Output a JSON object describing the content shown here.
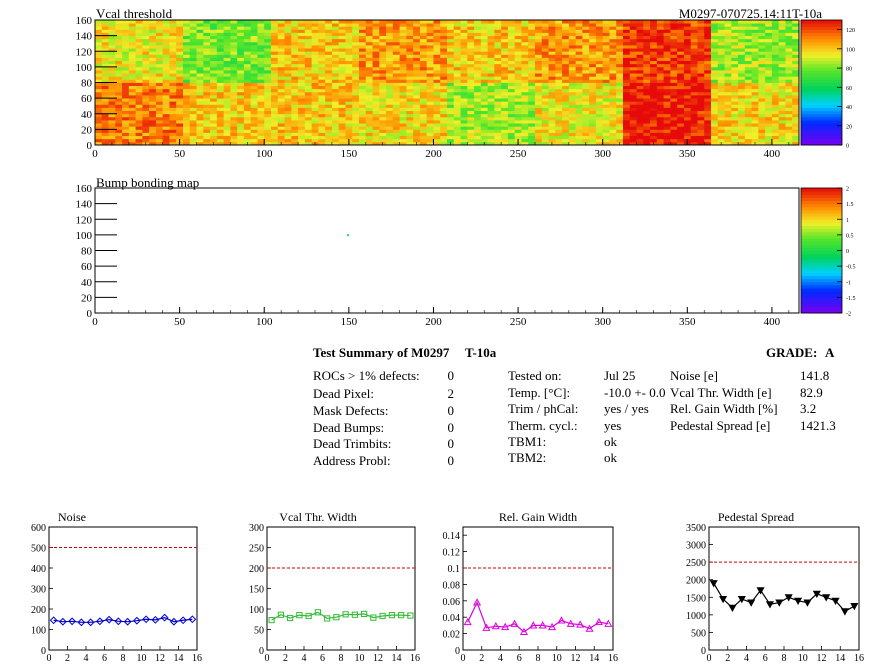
{
  "header": {
    "title": "Vcal threshold",
    "module_id": "M0297-070725.14:11T-10a"
  },
  "bump_map": {
    "title": "Bump bonding map"
  },
  "summary": {
    "title": "Test Summary of M0297",
    "tag": "T-10a",
    "grade_label": "GRADE:",
    "grade": "A",
    "col1": [
      {
        "label": "ROCs > 1% defects:",
        "value": "0"
      },
      {
        "label": "Dead Pixel:",
        "value": "2"
      },
      {
        "label": "Mask Defects:",
        "value": "0"
      },
      {
        "label": "Dead Bumps:",
        "value": "0"
      },
      {
        "label": "Dead Trimbits:",
        "value": "0"
      },
      {
        "label": "Address Probl:",
        "value": "0"
      }
    ],
    "col2": [
      {
        "label": "Tested on:",
        "value": "Jul 25"
      },
      {
        "label": "Temp. [°C]:",
        "value": "-10.0 +- 0.0"
      },
      {
        "label": "Trim / phCal:",
        "value": "yes / yes"
      },
      {
        "label": "Therm. cycl.:",
        "value": "yes"
      },
      {
        "label": "TBM1:",
        "value": "ok"
      },
      {
        "label": "TBM2:",
        "value": "ok"
      }
    ],
    "col3": [
      {
        "label": "Noise [e]",
        "value": "141.8"
      },
      {
        "label": "Vcal Thr. Width [e]",
        "value": "82.9"
      },
      {
        "label": "Rel. Gain Width [%]",
        "value": "3.2"
      },
      {
        "label": "Pedestal Spread [e]",
        "value": "1421.3"
      }
    ]
  },
  "chart_data": [
    {
      "type": "heatmap",
      "title": "Vcal threshold",
      "xlim": [
        0,
        416
      ],
      "ylim": [
        0,
        160
      ],
      "x_ticks": [
        0,
        50,
        100,
        150,
        200,
        250,
        300,
        350,
        400
      ],
      "y_ticks": [
        0,
        20,
        40,
        60,
        80,
        100,
        120,
        140,
        160
      ],
      "colorbar": {
        "min": 0,
        "max": 130,
        "ticks": [
          0,
          20,
          40,
          60,
          80,
          100,
          120
        ]
      },
      "roc_grid": {
        "cols": 8,
        "rows": 2,
        "roc_width": 52,
        "roc_height": 80
      },
      "roc_levels_top": [
        95,
        80,
        100,
        108,
        100,
        108,
        123,
        85
      ],
      "roc_levels_bottom": [
        112,
        100,
        100,
        98,
        85,
        95,
        128,
        98
      ]
    },
    {
      "type": "heatmap",
      "title": "Bump bonding map",
      "xlim": [
        0,
        416
      ],
      "ylim": [
        0,
        160
      ],
      "x_ticks": [
        0,
        50,
        100,
        150,
        200,
        250,
        300,
        350,
        400
      ],
      "y_ticks": [
        0,
        20,
        40,
        60,
        80,
        100,
        120,
        140,
        160
      ],
      "colorbar": {
        "min": -2,
        "max": 2,
        "ticks": [
          -2,
          -1.5,
          -1,
          -0.5,
          0,
          0.5,
          1,
          1.5,
          2
        ]
      },
      "points": [
        {
          "x": 149,
          "y": 99,
          "value": 0
        }
      ]
    },
    {
      "type": "line",
      "title": "Noise",
      "xlim": [
        0,
        16
      ],
      "ylim": [
        0,
        600
      ],
      "x_ticks": [
        0,
        2,
        4,
        6,
        8,
        10,
        12,
        14,
        16
      ],
      "y_ticks": [
        0,
        100,
        200,
        300,
        400,
        500,
        600
      ],
      "limit": 500,
      "color": "#0000cc",
      "marker": "diamond",
      "x": [
        0.5,
        1.5,
        2.5,
        3.5,
        4.5,
        5.5,
        6.5,
        7.5,
        8.5,
        9.5,
        10.5,
        11.5,
        12.5,
        13.5,
        14.5,
        15.5
      ],
      "values": [
        145,
        138,
        140,
        135,
        135,
        140,
        148,
        140,
        138,
        143,
        150,
        147,
        158,
        138,
        145,
        150
      ]
    },
    {
      "type": "line",
      "title": "Vcal Thr. Width",
      "xlim": [
        0,
        16
      ],
      "ylim": [
        0,
        300
      ],
      "x_ticks": [
        0,
        2,
        4,
        6,
        8,
        10,
        12,
        14,
        16
      ],
      "y_ticks": [
        0,
        50,
        100,
        150,
        200,
        250,
        300
      ],
      "limit": 200,
      "color": "#33bb33",
      "marker": "square",
      "x": [
        0.5,
        1.5,
        2.5,
        3.5,
        4.5,
        5.5,
        6.5,
        7.5,
        8.5,
        9.5,
        10.5,
        11.5,
        12.5,
        13.5,
        14.5,
        15.5
      ],
      "values": [
        73,
        86,
        78,
        85,
        83,
        92,
        77,
        80,
        87,
        86,
        88,
        79,
        83,
        85,
        85,
        84
      ]
    },
    {
      "type": "line",
      "title": "Rel. Gain Width",
      "xlim": [
        0,
        16
      ],
      "ylim": [
        0,
        0.15
      ],
      "x_ticks": [
        0,
        2,
        4,
        6,
        8,
        10,
        12,
        14,
        16
      ],
      "y_ticks": [
        0,
        0.02,
        0.04,
        0.06,
        0.08,
        0.1,
        0.12,
        0.14
      ],
      "limit": 0.1,
      "color": "#dd00dd",
      "marker": "triangle",
      "x": [
        0.5,
        1.5,
        2.5,
        3.5,
        4.5,
        5.5,
        6.5,
        7.5,
        8.5,
        9.5,
        10.5,
        11.5,
        12.5,
        13.5,
        14.5,
        15.5
      ],
      "values": [
        0.034,
        0.058,
        0.027,
        0.029,
        0.028,
        0.032,
        0.022,
        0.03,
        0.03,
        0.028,
        0.036,
        0.032,
        0.031,
        0.026,
        0.034,
        0.032
      ]
    },
    {
      "type": "line",
      "title": "Pedestal Spread",
      "xlim": [
        0,
        16
      ],
      "ylim": [
        0,
        3500
      ],
      "x_ticks": [
        0,
        2,
        4,
        6,
        8,
        10,
        12,
        14,
        16
      ],
      "y_ticks": [
        0,
        500,
        1000,
        1500,
        2000,
        2500,
        3000,
        3500
      ],
      "limit": 2500,
      "color": "#000000",
      "marker": "triangle-down",
      "x": [
        0.5,
        1.5,
        2.5,
        3.5,
        4.5,
        5.5,
        6.5,
        7.5,
        8.5,
        9.5,
        10.5,
        11.5,
        12.5,
        13.5,
        14.5,
        15.5
      ],
      "values": [
        1900,
        1450,
        1200,
        1450,
        1350,
        1700,
        1300,
        1350,
        1500,
        1400,
        1350,
        1600,
        1500,
        1400,
        1100,
        1250
      ]
    }
  ]
}
